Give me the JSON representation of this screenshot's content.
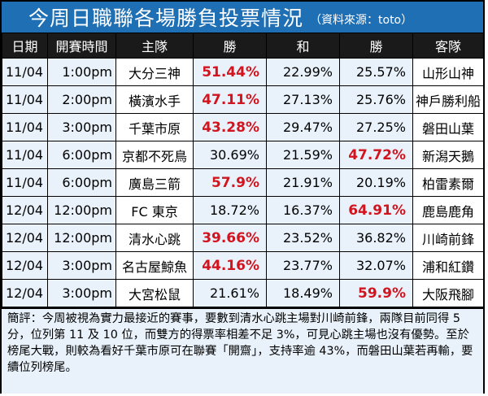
{
  "title": {
    "main": "今周日職聯各場勝負投票情況",
    "source": "（資料來源：toto）"
  },
  "headers": [
    "日期",
    "開賽時間",
    "主隊",
    "勝",
    "和",
    "勝",
    "客隊"
  ],
  "rows": [
    {
      "date": "11/04",
      "time": "1:00pm",
      "home": "大分三神",
      "home_win": "51.44%",
      "draw": "22.99%",
      "away_win": "25.57%",
      "away": "山形山神"
    },
    {
      "date": "11/04",
      "time": "2:00pm",
      "home": "橫濱水手",
      "home_win": "47.11%",
      "draw": "27.13%",
      "away_win": "25.76%",
      "away": "神戶勝利船"
    },
    {
      "date": "11/04",
      "time": "3:00pm",
      "home": "千葉市原",
      "home_win": "43.28%",
      "draw": "29.47%",
      "away_win": "27.25%",
      "away": "磐田山葉"
    },
    {
      "date": "11/04",
      "time": "6:00pm",
      "home": "京都不死鳥",
      "home_win": "30.69%",
      "draw": "21.59%",
      "away_win": "47.72%",
      "away": "新潟天鵝"
    },
    {
      "date": "11/04",
      "time": "6:00pm",
      "home": "廣島三箭",
      "home_win": "57.9%",
      "draw": "21.91%",
      "away_win": "20.19%",
      "away": "柏雷素爾"
    },
    {
      "date": "12/04",
      "time": "12:00pm",
      "home": "FC 東京",
      "home_win": "18.72%",
      "draw": "16.37%",
      "away_win": "64.91%",
      "away": "鹿島鹿角"
    },
    {
      "date": "12/04",
      "time": "12:00pm",
      "home": "清水心跳",
      "home_win": "39.66%",
      "draw": "23.52%",
      "away_win": "36.82%",
      "away": "川崎前鋒"
    },
    {
      "date": "12/04",
      "time": "3:00pm",
      "home": "名古屋鯨魚",
      "home_win": "44.16%",
      "draw": "23.77%",
      "away_win": "32.07%",
      "away": "浦和紅鑽"
    },
    {
      "date": "12/04",
      "time": "3:00pm",
      "home": "大宮松鼠",
      "home_win": "21.61%",
      "draw": "18.49%",
      "away_win": "59.9%",
      "away": "大阪飛腳"
    }
  ],
  "comment": "簡評：今周被視為實力最接近的賽事，要數到清水心跳主場對川崎前鋒，兩隊目前同得 5 分，位列第 11 及 10 位，而雙方的得票率相差不足 3%，可見心跳主場也沒有優勢。至於榜尾大戰，則較為看好千葉市原可在聯賽「開齋」，支持率逾 43%，而磐田山葉若再輸，要續位列榜尾。",
  "colors": {
    "title_bg": "#1f6fb5",
    "header_bg": "#1a1a1a",
    "row_bg": "#e9f2fb",
    "highlight": "#d2141e"
  }
}
